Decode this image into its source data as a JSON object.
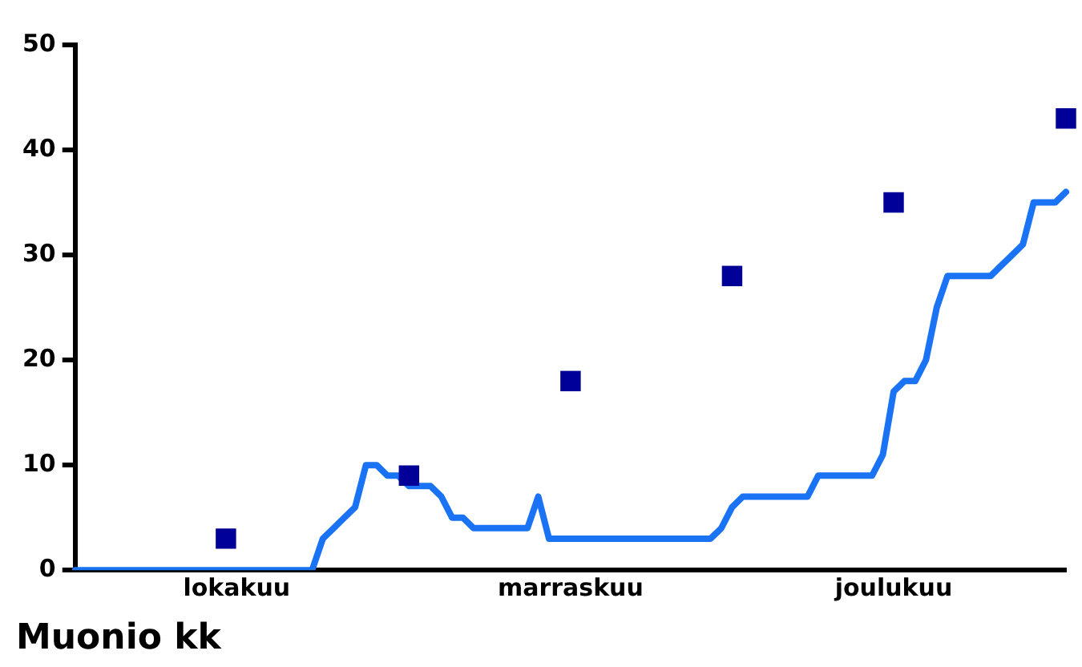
{
  "chart_data": {
    "type": "line",
    "title": "Muonio kk",
    "categories": [
      null,
      null,
      null,
      null,
      null,
      null,
      null,
      null,
      null,
      null,
      null,
      null,
      null,
      null,
      null,
      "lokakuu",
      null,
      null,
      null,
      null,
      null,
      null,
      null,
      null,
      null,
      null,
      null,
      null,
      null,
      null,
      null,
      null,
      null,
      null,
      null,
      null,
      null,
      null,
      null,
      null,
      null,
      null,
      null,
      null,
      null,
      null,
      "marraskuu",
      null,
      null,
      null,
      null,
      null,
      null,
      null,
      null,
      null,
      null,
      null,
      null,
      null,
      null,
      null,
      null,
      null,
      null,
      null,
      null,
      null,
      null,
      null,
      null,
      null,
      null,
      null,
      null,
      null,
      "joulukuu",
      null,
      null,
      null,
      null,
      null,
      null,
      null,
      null,
      null,
      null,
      null,
      null,
      null,
      null,
      null,
      null
    ],
    "ylim": [
      0,
      50
    ],
    "yticks": [
      0,
      10,
      20,
      30,
      40,
      50
    ],
    "grid": false,
    "legend": false,
    "series": [
      {
        "color": "#1a73f5",
        "marker": "none",
        "values": [
          0,
          0,
          0,
          0,
          0,
          0,
          0,
          0,
          0,
          0,
          0,
          0,
          0,
          0,
          0,
          0,
          0,
          0,
          0,
          0,
          0,
          0,
          0,
          3,
          4,
          5,
          6,
          10,
          10,
          9,
          9,
          8,
          8,
          8,
          7,
          5,
          5,
          4,
          4,
          4,
          4,
          4,
          4,
          7,
          3,
          3,
          3,
          3,
          3,
          3,
          3,
          3,
          3,
          3,
          3,
          3,
          3,
          3,
          3,
          3,
          4,
          6,
          7,
          7,
          7,
          7,
          7,
          7,
          7,
          9,
          9,
          9,
          9,
          9,
          9,
          11,
          17,
          18,
          18,
          20,
          25,
          28,
          28,
          28,
          28,
          28,
          29,
          30,
          31,
          35,
          35,
          35,
          36
        ]
      },
      {
        "type": "scatter",
        "color": "#000099",
        "marker": "square",
        "values": [
          null,
          null,
          null,
          null,
          null,
          null,
          null,
          null,
          null,
          null,
          null,
          null,
          null,
          null,
          3,
          null,
          null,
          null,
          null,
          null,
          null,
          null,
          null,
          null,
          null,
          null,
          null,
          null,
          null,
          null,
          null,
          9,
          null,
          null,
          null,
          null,
          null,
          null,
          null,
          null,
          null,
          null,
          null,
          null,
          null,
          null,
          18,
          null,
          null,
          null,
          null,
          null,
          null,
          null,
          null,
          null,
          null,
          null,
          null,
          null,
          null,
          28,
          null,
          null,
          null,
          null,
          null,
          null,
          null,
          null,
          null,
          null,
          null,
          null,
          null,
          null,
          35,
          null,
          null,
          null,
          null,
          null,
          null,
          null,
          null,
          null,
          null,
          null,
          null,
          null,
          null,
          null,
          43
        ]
      }
    ]
  }
}
